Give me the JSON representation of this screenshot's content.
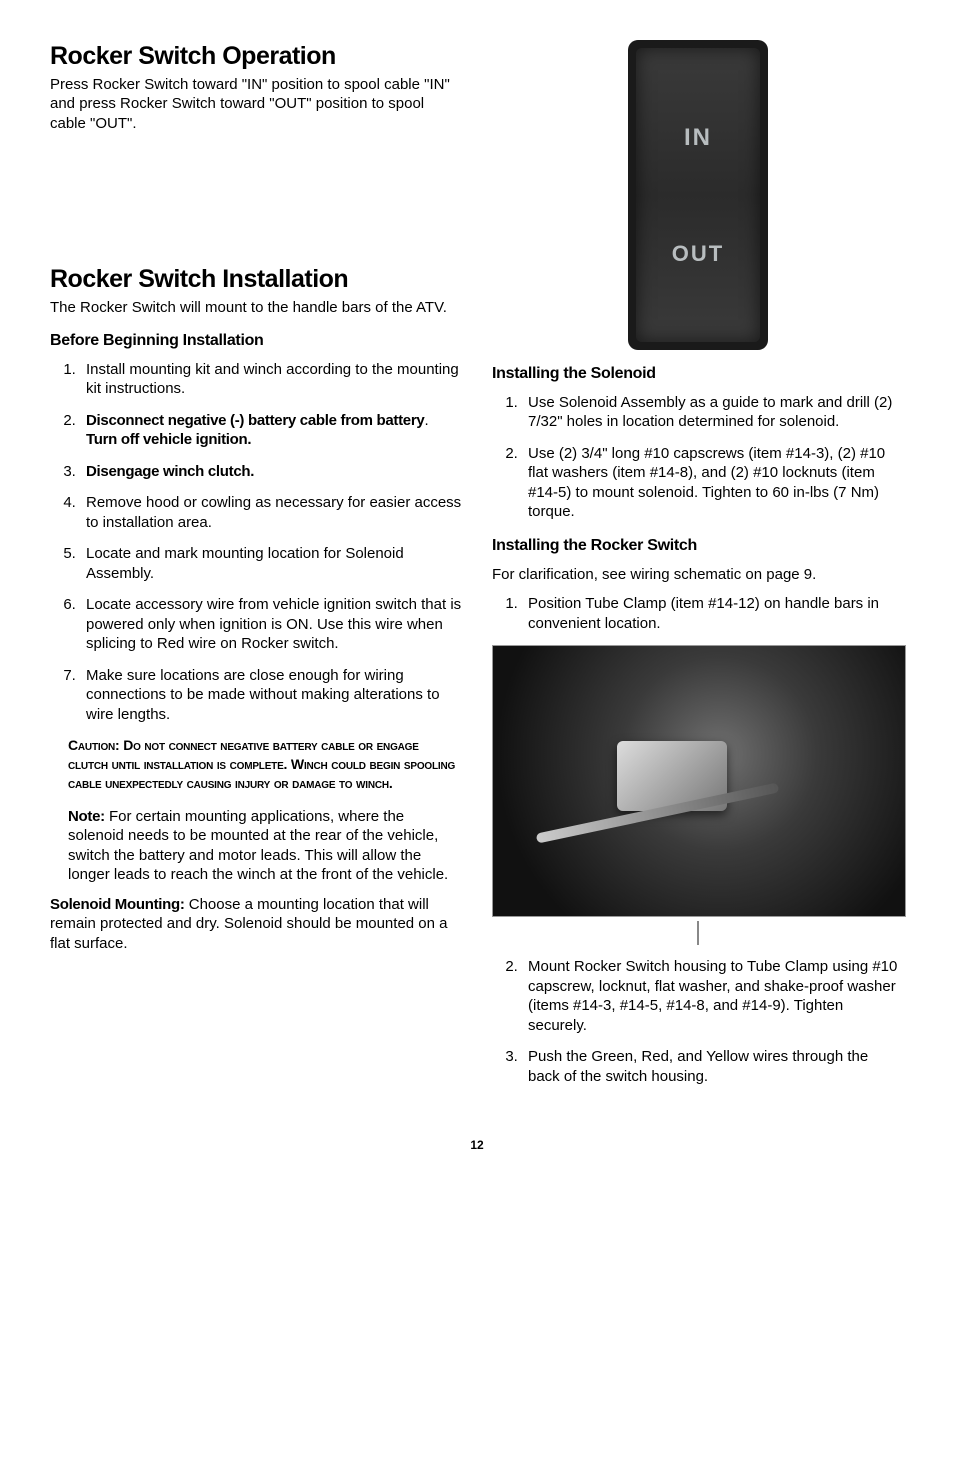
{
  "page_number": "12",
  "left": {
    "h1a": "Rocker Switch Operation",
    "p1": "Press Rocker Switch toward \"IN\" position to spool cable \"IN\" and press Rocker Switch toward \"OUT\" position to spool cable \"OUT\".",
    "h1b": "Rocker Switch Installation",
    "p2": "The Rocker Switch will mount to the handle bars of the ATV.",
    "h2a": "Before Beginning Installation",
    "ol1": {
      "i1": "Install mounting kit and winch according to the mounting kit instructions.",
      "i2a": "Disconnect negative (-) battery cable from battery",
      "i2b": ". ",
      "i2c": "Turn off vehicle ignition.",
      "i3": "Disengage winch clutch.",
      "i4": "Remove hood or cowling as necessary for easier access to installation area.",
      "i5": "Locate and mark mounting location for Solenoid Assembly.",
      "i6": "Locate accessory wire from vehicle ignition switch that is powered only when ignition is ON. Use this wire when splicing to Red wire on Rocker switch.",
      "i7": "Make sure locations are close enough for wiring connections to be made without making alterations to wire lengths."
    },
    "caution": "Caution: Do not connect negative battery cable or engage clutch until installation is complete. Winch could begin spooling cable unexpectedly causing injury or damage to winch.",
    "note_label": "Note:",
    "note_body": " For certain mounting applications, where the solenoid needs to be mounted at the rear of the vehicle, switch the battery and motor leads. This will allow the longer leads to reach the winch at the front of the vehicle.",
    "sol_label": "Solenoid Mounting:",
    "sol_body": " Choose a mounting location that will remain protected and dry. Solenoid should be mounted on a flat surface."
  },
  "right": {
    "rocker_in": "IN",
    "rocker_out": "OUT",
    "h2a": "Installing the Solenoid",
    "ol1": {
      "i1": "Use Solenoid Assembly as a guide to mark and drill (2) 7/32\" holes in location determined for solenoid.",
      "i2": "Use (2) 3/4\" long #10 capscrews (item #14-3), (2) #10 flat washers (item #14-8), and (2) #10 locknuts (item #14-5) to mount solenoid. Tighten to 60 in-lbs (7 Nm) torque."
    },
    "h2b": "Installing the Rocker Switch",
    "p1": "For clarification, see wiring schematic on page 9.",
    "ol2": {
      "i1": "Position Tube Clamp (item #14-12) on handle bars in convenient location."
    },
    "ol3": {
      "i2": "Mount Rocker Switch housing to Tube Clamp using #10 capscrew, locknut, flat washer, and shake-proof washer (items #14-3, #14-5, #14-8, and #14-9). Tighten securely.",
      "i3": "Push the Green, Red, and Yellow wires through the back of the switch housing."
    }
  }
}
